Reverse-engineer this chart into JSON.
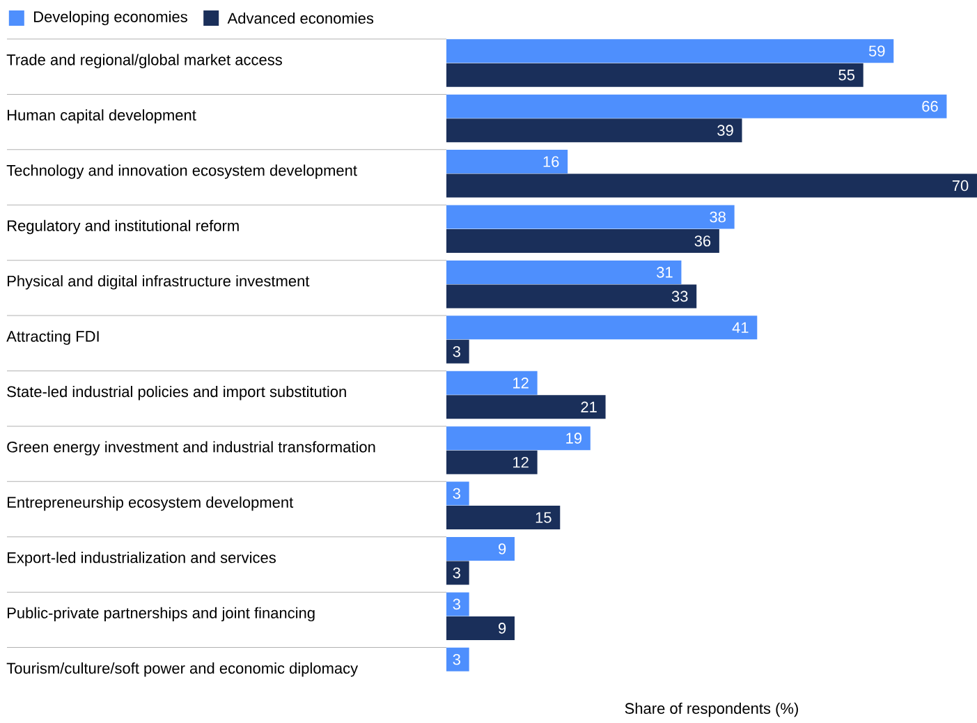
{
  "chart_data": {
    "type": "bar",
    "orientation": "horizontal",
    "data_labels": true,
    "legend": "top left",
    "xlabel": "Share of respondents (%)",
    "categories": [
      "Trade and regional/global market access",
      "Human capital development",
      "Technology and innovation ecosystem development",
      "Regulatory and institutional reform",
      "Physical and digital infrastructure investment",
      "Attracting FDI",
      "State-led industrial policies and import substitution",
      "Green energy investment and industrial transformation",
      "Entrepreneurship ecosystem development",
      "Export-led industrialization and services",
      "Public-private partnerships and joint financing",
      "Tourism/culture/soft power and economic diplomacy"
    ],
    "series": [
      {
        "name": "Developing economies",
        "color": "#4e8ffd",
        "values": [
          59,
          66,
          16,
          38,
          31,
          41,
          12,
          19,
          3,
          9,
          3,
          3
        ]
      },
      {
        "name": "Advanced economies",
        "color": "#1a2f5a",
        "values": [
          55,
          39,
          70,
          36,
          33,
          3,
          21,
          12,
          15,
          3,
          9,
          null
        ]
      }
    ]
  }
}
